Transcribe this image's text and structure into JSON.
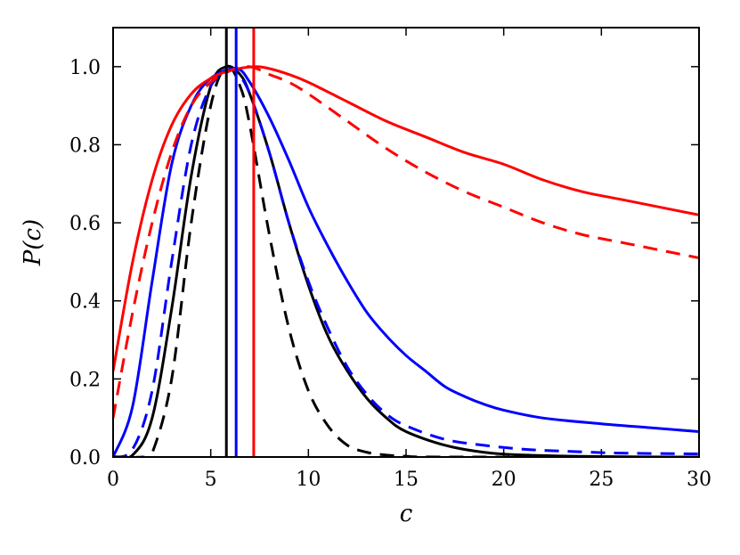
{
  "chart_data": {
    "type": "line",
    "title": "",
    "xlabel": "c",
    "ylabel": "P(c)",
    "xlim": [
      0,
      30
    ],
    "ylim": [
      0,
      1.1
    ],
    "xticks": [
      0,
      5,
      10,
      15,
      20,
      25,
      30
    ],
    "yticks": [
      0.0,
      0.2,
      0.4,
      0.6,
      0.8,
      1.0
    ],
    "xtick_labels": [
      "0",
      "5",
      "10",
      "15",
      "20",
      "25",
      "30"
    ],
    "ytick_labels": [
      "0.0",
      "0.2",
      "0.4",
      "0.6",
      "0.8",
      "1.0"
    ],
    "grid": false,
    "legend": "none",
    "series": [
      {
        "color": "#000000",
        "style": "solid",
        "x": [
          0,
          1,
          2,
          3,
          4,
          5,
          5.8,
          6.5,
          7,
          8,
          9,
          10,
          11,
          12,
          13,
          14,
          15,
          17,
          19,
          21,
          25,
          30
        ],
        "y": [
          0.0,
          0.005,
          0.1,
          0.38,
          0.72,
          0.95,
          1.0,
          0.98,
          0.93,
          0.78,
          0.6,
          0.44,
          0.31,
          0.22,
          0.15,
          0.1,
          0.065,
          0.03,
          0.012,
          0.005,
          0.001,
          0.0
        ]
      },
      {
        "color": "#000000",
        "style": "dashed",
        "x": [
          0,
          1.5,
          2,
          3,
          4,
          5,
          5.8,
          6.5,
          7,
          8,
          9,
          10,
          11,
          12,
          13,
          14,
          15,
          17,
          30
        ],
        "y": [
          0.0,
          0.0,
          0.01,
          0.2,
          0.6,
          0.9,
          1.0,
          0.95,
          0.85,
          0.57,
          0.33,
          0.17,
          0.08,
          0.03,
          0.012,
          0.005,
          0.002,
          0.0,
          0.0
        ]
      },
      {
        "color": "#0000ff",
        "style": "solid",
        "x": [
          0,
          1,
          2,
          3,
          4,
          5,
          6.3,
          7,
          8,
          9,
          10,
          11,
          12,
          13,
          14,
          15,
          16,
          17,
          18,
          19,
          20,
          22,
          25,
          27.5,
          30
        ],
        "y": [
          0.0,
          0.13,
          0.45,
          0.75,
          0.9,
          0.97,
          0.995,
          0.96,
          0.87,
          0.76,
          0.64,
          0.54,
          0.45,
          0.37,
          0.31,
          0.26,
          0.22,
          0.18,
          0.155,
          0.135,
          0.12,
          0.1,
          0.085,
          0.075,
          0.065
        ]
      },
      {
        "color": "#0000ff",
        "style": "dashed",
        "x": [
          0,
          1,
          2,
          3,
          4,
          5,
          6,
          6.3,
          7,
          8,
          9,
          10,
          11,
          12,
          13,
          14,
          15,
          17,
          19,
          21,
          23,
          26,
          30
        ],
        "y": [
          0.0,
          0.02,
          0.17,
          0.5,
          0.8,
          0.95,
          0.99,
          0.99,
          0.93,
          0.78,
          0.6,
          0.45,
          0.33,
          0.23,
          0.16,
          0.11,
          0.08,
          0.045,
          0.03,
          0.02,
          0.015,
          0.01,
          0.008
        ]
      },
      {
        "color": "#ff0000",
        "style": "solid",
        "x": [
          0,
          1,
          2,
          3,
          4,
          5,
          6,
          7.2,
          8,
          9,
          10,
          12,
          14,
          16,
          18,
          20,
          22,
          24,
          26,
          28,
          30
        ],
        "y": [
          0.22,
          0.5,
          0.71,
          0.85,
          0.93,
          0.97,
          0.99,
          1.0,
          0.995,
          0.98,
          0.96,
          0.91,
          0.86,
          0.82,
          0.78,
          0.75,
          0.71,
          0.68,
          0.66,
          0.64,
          0.62
        ]
      },
      {
        "color": "#ff0000",
        "style": "dashed",
        "x": [
          0,
          1,
          2,
          3,
          4,
          5,
          6,
          7,
          8,
          9,
          10,
          12,
          14,
          16,
          18,
          20,
          22,
          24,
          26,
          28,
          30
        ],
        "y": [
          0.1,
          0.37,
          0.6,
          0.78,
          0.9,
          0.96,
          0.99,
          1.0,
          0.98,
          0.96,
          0.93,
          0.86,
          0.79,
          0.73,
          0.68,
          0.64,
          0.6,
          0.57,
          0.55,
          0.53,
          0.51
        ]
      }
    ],
    "vertical_lines": [
      {
        "x": 5.8,
        "color": "#000000"
      },
      {
        "x": 6.3,
        "color": "#0000ff"
      },
      {
        "x": 7.2,
        "color": "#ff0000"
      }
    ]
  }
}
